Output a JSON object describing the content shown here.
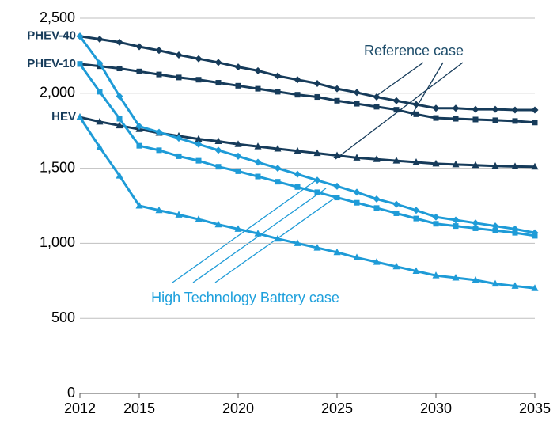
{
  "chart_data": {
    "type": "line",
    "x": [
      2012,
      2013,
      2014,
      2015,
      2016,
      2017,
      2018,
      2019,
      2020,
      2021,
      2022,
      2023,
      2024,
      2025,
      2026,
      2027,
      2028,
      2029,
      2030,
      2031,
      2032,
      2033,
      2034,
      2035
    ],
    "xlim": [
      2012,
      2035
    ],
    "xticks": [
      2012,
      2015,
      2020,
      2025,
      2030,
      2035
    ],
    "ylim": [
      0,
      2500
    ],
    "yticks": [
      0,
      500,
      {
        "value": 1000,
        "label": "1,000"
      },
      {
        "value": 1500,
        "label": "1,500"
      },
      {
        "value": 2000,
        "label": "2,000"
      },
      {
        "value": 2500,
        "label": "2,500"
      }
    ],
    "grid": true,
    "annotations": [
      "Reference case",
      "High Technology Battery case"
    ],
    "series": [
      {
        "name": "PHEV-40",
        "color": "#163b5a",
        "marker": "diamond",
        "values": [
          2380,
          2360,
          2340,
          2310,
          2285,
          2255,
          2230,
          2205,
          2175,
          2150,
          2115,
          2090,
          2065,
          2030,
          2005,
          1975,
          1950,
          1925,
          1900,
          1900,
          1893,
          1893,
          1888,
          1888
        ]
      },
      {
        "name": "PHEV-10",
        "color": "#163b5a",
        "marker": "square",
        "values": [
          2195,
          2180,
          2165,
          2145,
          2125,
          2105,
          2090,
          2070,
          2050,
          2030,
          2010,
          1990,
          1975,
          1950,
          1930,
          1910,
          1890,
          1860,
          1835,
          1830,
          1825,
          1820,
          1815,
          1805
        ]
      },
      {
        "name": "HEV",
        "color": "#163b5a",
        "marker": "triangle",
        "values": [
          1840,
          1810,
          1785,
          1760,
          1735,
          1715,
          1695,
          1680,
          1660,
          1645,
          1630,
          1615,
          1600,
          1585,
          1570,
          1560,
          1550,
          1540,
          1530,
          1525,
          1520,
          1515,
          1512,
          1510
        ]
      },
      {
        "color": "#1e9bd7",
        "marker": "diamond",
        "values": [
          2380,
          2200,
          1980,
          1780,
          1740,
          1700,
          1660,
          1620,
          1580,
          1540,
          1500,
          1460,
          1420,
          1380,
          1340,
          1295,
          1260,
          1220,
          1175,
          1155,
          1135,
          1115,
          1095,
          1070
        ]
      },
      {
        "color": "#1e9bd7",
        "marker": "square",
        "values": [
          2195,
          2010,
          1830,
          1650,
          1620,
          1580,
          1550,
          1510,
          1480,
          1445,
          1410,
          1375,
          1340,
          1305,
          1270,
          1235,
          1200,
          1165,
          1130,
          1115,
          1100,
          1085,
          1070,
          1050
        ]
      },
      {
        "color": "#1e9bd7",
        "marker": "triangle",
        "values": [
          1840,
          1640,
          1450,
          1250,
          1220,
          1190,
          1160,
          1125,
          1095,
          1065,
          1030,
          1000,
          970,
          940,
          905,
          875,
          845,
          815,
          785,
          770,
          755,
          730,
          715,
          700
        ]
      }
    ]
  }
}
